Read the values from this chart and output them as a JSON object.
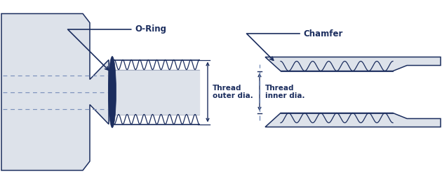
{
  "bg_color": "#ffffff",
  "part_fill": "#dde2ea",
  "part_edge": "#1b2d5e",
  "oring_color": "#1b2d5e",
  "dim_color": "#1b2d5e",
  "dash_color": "#7a90bb",
  "text_color": "#1b2d5e",
  "label_oring": "O-Ring",
  "label_chamfer": "Chamfer",
  "label_outer": "Thread\nouter dia.",
  "label_inner": "Thread\ninner dia.",
  "figw": 6.3,
  "figh": 2.63,
  "dpi": 100
}
